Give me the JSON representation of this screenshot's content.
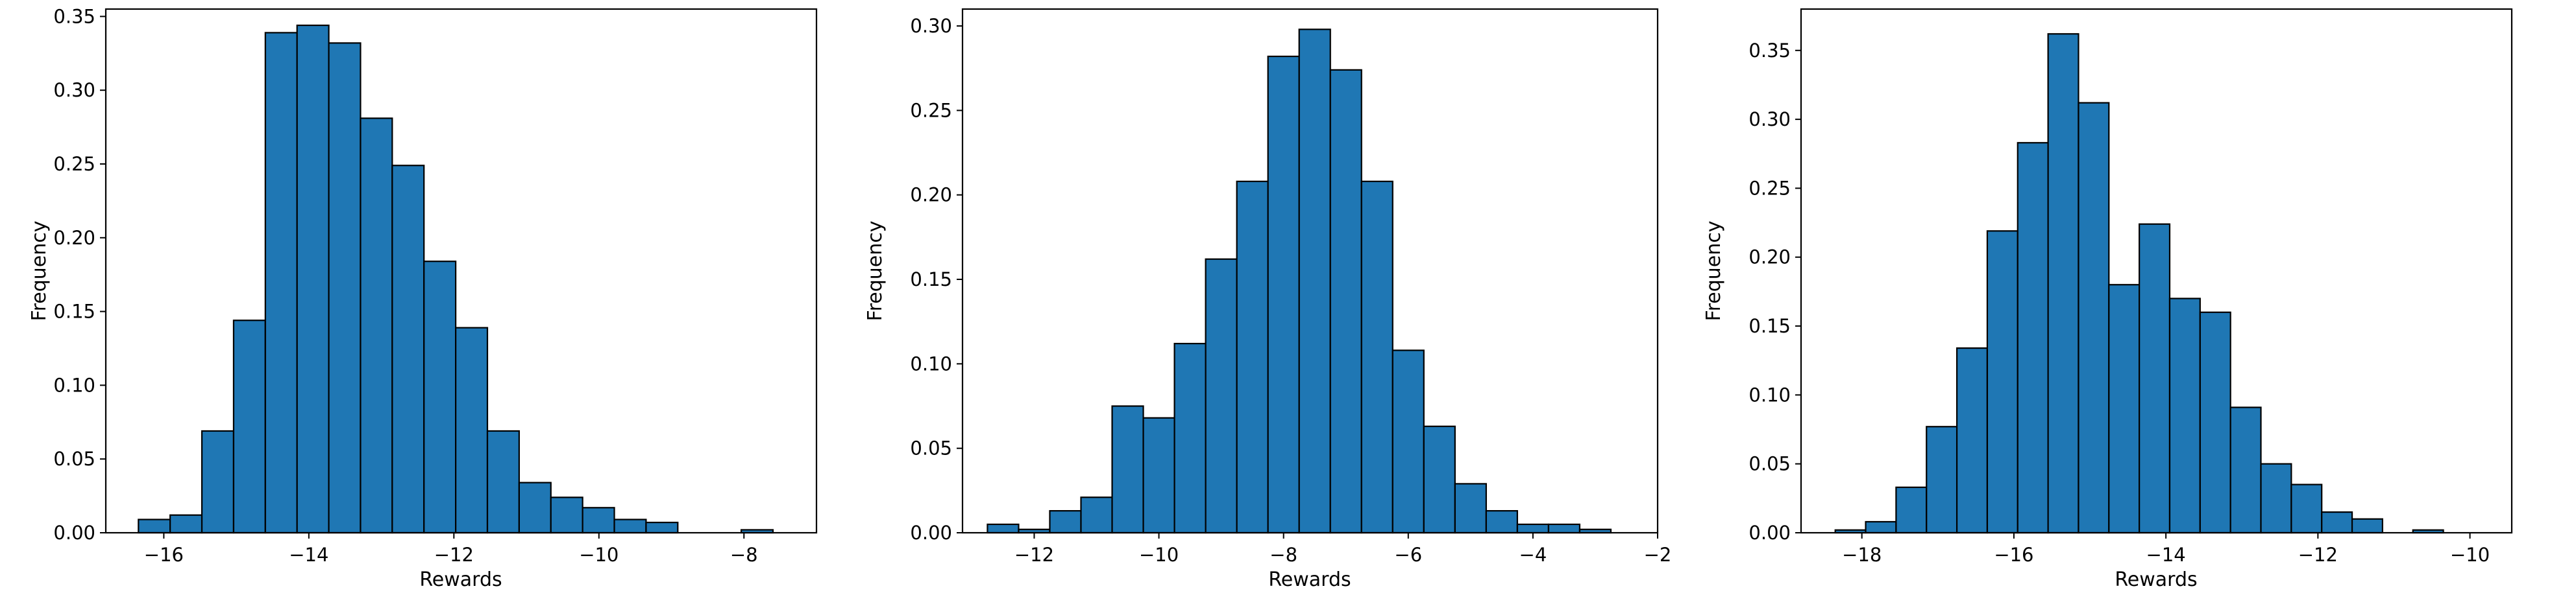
{
  "chart_data": [
    {
      "type": "bar",
      "histogram": true,
      "xlabel": "Rewards",
      "ylabel": "Frequency",
      "xlim": [
        -16.8,
        -7.0
      ],
      "ylim": [
        0,
        0.355
      ],
      "x_ticks": [
        -16,
        -14,
        -12,
        -10,
        -8
      ],
      "y_ticks": [
        0.0,
        0.05,
        0.1,
        0.15,
        0.2,
        0.25,
        0.3,
        0.35
      ],
      "bin_start": -16.35,
      "bin_width": 0.4375,
      "values": [
        0.009,
        0.012,
        0.069,
        0.144,
        0.339,
        0.344,
        0.332,
        0.281,
        0.249,
        0.184,
        0.139,
        0.069,
        0.034,
        0.024,
        0.017,
        0.009,
        0.007,
        0.0,
        0.0,
        0.002
      ],
      "bar_color": "#1f77b4",
      "edge_color": "#000000"
    },
    {
      "type": "bar",
      "histogram": true,
      "xlabel": "Rewards",
      "ylabel": "Frequency",
      "xlim": [
        -13.15,
        -2.0
      ],
      "ylim": [
        0,
        0.31
      ],
      "x_ticks": [
        -12,
        -10,
        -8,
        -6,
        -4,
        -2
      ],
      "y_ticks": [
        0.0,
        0.05,
        0.1,
        0.15,
        0.2,
        0.25,
        0.3
      ],
      "bin_start": -12.75,
      "bin_width": 0.5,
      "values": [
        0.005,
        0.002,
        0.013,
        0.021,
        0.075,
        0.068,
        0.112,
        0.162,
        0.208,
        0.282,
        0.298,
        0.274,
        0.208,
        0.108,
        0.063,
        0.029,
        0.013,
        0.005,
        0.005,
        0.002
      ],
      "bar_color": "#1f77b4",
      "edge_color": "#000000"
    },
    {
      "type": "bar",
      "histogram": true,
      "xlabel": "Rewards",
      "ylabel": "Frequency",
      "xlim": [
        -18.8,
        -9.45
      ],
      "ylim": [
        0,
        0.38
      ],
      "x_ticks": [
        -18,
        -16,
        -14,
        -12,
        -10
      ],
      "y_ticks": [
        0.0,
        0.05,
        0.1,
        0.15,
        0.2,
        0.25,
        0.3,
        0.35
      ],
      "bin_start": -18.35,
      "bin_width": 0.4,
      "values": [
        0.002,
        0.008,
        0.033,
        0.077,
        0.134,
        0.219,
        0.283,
        0.362,
        0.312,
        0.18,
        0.224,
        0.17,
        0.16,
        0.091,
        0.05,
        0.035,
        0.015,
        0.01,
        0.0,
        0.002
      ],
      "bar_color": "#1f77b4",
      "edge_color": "#000000"
    }
  ]
}
